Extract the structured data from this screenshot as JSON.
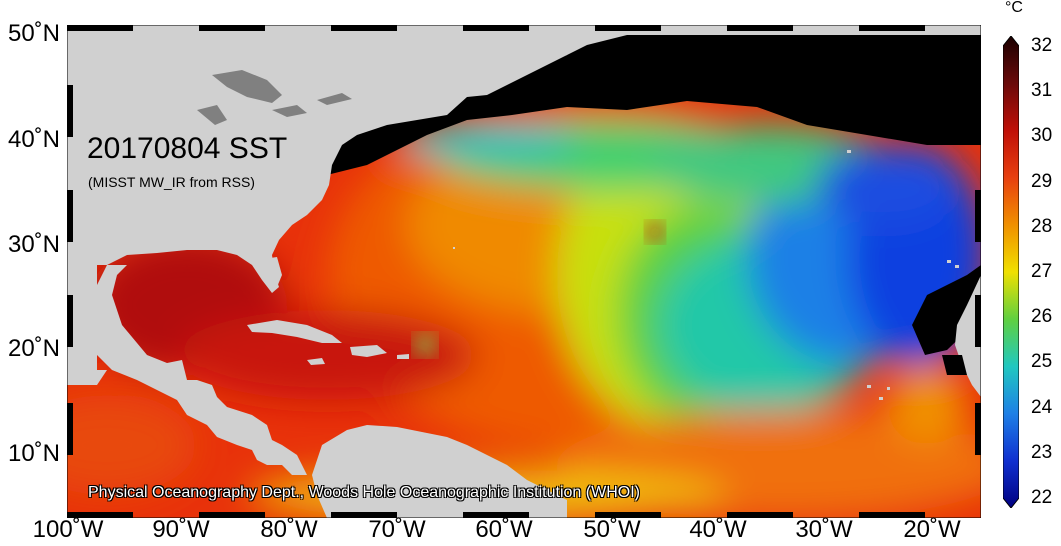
{
  "map": {
    "title": "20170804 SST",
    "subtitle": "(MISST MW_IR from RSS)",
    "credit": "Physical Oceanography Dept., Woods Hole Oceanographic Institution (WHOI)",
    "lat_labels": [
      "50˚N",
      "40˚N",
      "30˚N",
      "20˚N",
      "10˚N"
    ],
    "lon_labels": [
      "100˚W",
      "90˚W",
      "80˚W",
      "70˚W",
      "60˚W",
      "50˚W",
      "40˚W",
      "30˚W",
      "20˚W"
    ],
    "colors": {
      "land": "#d0d0d0",
      "no_data": "#000000",
      "lakes": "#808080"
    }
  },
  "colorbar": {
    "unit": "°C",
    "ticks": [
      "32",
      "31",
      "30",
      "29",
      "28",
      "27",
      "26",
      "25",
      "24",
      "23",
      "22"
    ],
    "min": 22,
    "max": 32
  }
}
